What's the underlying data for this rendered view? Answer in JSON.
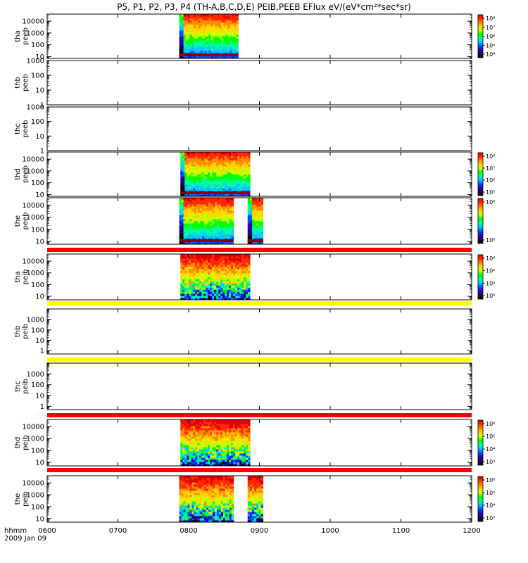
{
  "title": "P5, P1, P2, P3, P4 (TH-A,B,C,D,E) PEIB,PEEB EFlux eV/(eV*cm²*sec*sr)",
  "x_axis": {
    "label_line1": "hhmm",
    "label_line2": "2009 Jan 09",
    "ticks": [
      "0600",
      "0700",
      "0800",
      "0900",
      "1000",
      "1100",
      "1200"
    ]
  },
  "colors": {
    "flag_red": "#ff0000",
    "flag_yellow": "#ffff00",
    "colormap": [
      "#000000",
      "#2d0050",
      "#2a00c8",
      "#0050ff",
      "#00c8ff",
      "#00ff9a",
      "#00ff00",
      "#c8ff00",
      "#ffd400",
      "#ff8c00",
      "#ff2a00",
      "#e00000"
    ]
  },
  "chart_data": {
    "type": "heatmap",
    "x_range": [
      "06:00",
      "12:00"
    ],
    "y_scale": "log",
    "panels": [
      {
        "probe": "tha",
        "instrument": "peeb",
        "label": [
          "tha",
          "peeb"
        ],
        "ylim": [
          7,
          40000
        ],
        "yticks": [
          "10",
          "100",
          "1000",
          "10000"
        ],
        "data_intervals": [
          [
            "07:52",
            "08:42"
          ]
        ],
        "colorbar": {
          "ticks": [
            "10⁴",
            "10⁵",
            "10⁶",
            "10⁷",
            "10⁸"
          ]
        },
        "flag_bar_above": null
      },
      {
        "probe": "thb",
        "instrument": "peeb",
        "label": [
          "thb",
          "peeb"
        ],
        "ylim": [
          1,
          1000
        ],
        "yticks": [
          "1",
          "10",
          "100",
          "1000"
        ],
        "data_intervals": [],
        "colorbar": null,
        "flag_bar_above": null
      },
      {
        "probe": "thc",
        "instrument": "peeb",
        "label": [
          "thc",
          "peeb"
        ],
        "ylim": [
          1,
          1000
        ],
        "yticks": [
          "1",
          "10",
          "100",
          "1000"
        ],
        "data_intervals": [],
        "colorbar": null,
        "flag_bar_above": null
      },
      {
        "probe": "thd",
        "instrument": "peeb",
        "label": [
          "thd",
          "peeb"
        ],
        "ylim": [
          7,
          40000
        ],
        "yticks": [
          "10",
          "100",
          "1000",
          "10000"
        ],
        "data_intervals": [
          [
            "07:53",
            "08:52"
          ]
        ],
        "colorbar": {
          "ticks": [
            "10⁵",
            "10⁶",
            "10⁷",
            "10⁸"
          ]
        },
        "flag_bar_above": null
      },
      {
        "probe": "the",
        "instrument": "peeb",
        "label": [
          "the",
          "peeb"
        ],
        "ylim": [
          6,
          40000
        ],
        "yticks": [
          "10",
          "100",
          "1000",
          "10000"
        ],
        "data_intervals": [
          [
            "07:52",
            "08:38"
          ],
          [
            "08:50",
            "09:03"
          ]
        ],
        "colorbar": {
          "ticks": [
            "10⁶",
            "10⁸"
          ]
        },
        "flag_bar_above": null
      },
      {
        "probe": "tha",
        "instrument": "peib",
        "label": [
          "tha",
          "peib"
        ],
        "ylim": [
          5,
          40000
        ],
        "yticks": [
          "10",
          "100",
          "1000",
          "10000"
        ],
        "data_intervals": [
          [
            "07:53",
            "08:52"
          ]
        ],
        "colorbar": {
          "ticks": [
            "10³",
            "10⁴",
            "10⁵",
            "10⁶"
          ]
        },
        "flag_bar_above": "red"
      },
      {
        "probe": "thb",
        "instrument": "peib",
        "label": [
          "thb",
          "peib"
        ],
        "ylim": [
          0.5,
          10000
        ],
        "yticks": [
          "1",
          "10",
          "100",
          "1000"
        ],
        "data_intervals": [],
        "colorbar": null,
        "flag_bar_above": "yellow"
      },
      {
        "probe": "thc",
        "instrument": "peib",
        "label": [
          "thc",
          "peib"
        ],
        "ylim": [
          0.5,
          10000
        ],
        "yticks": [
          "1",
          "10",
          "100",
          "1000"
        ],
        "data_intervals": [],
        "colorbar": null,
        "flag_bar_above": "yellow"
      },
      {
        "probe": "thd",
        "instrument": "peib",
        "label": [
          "thd",
          "peib"
        ],
        "ylim": [
          5,
          40000
        ],
        "yticks": [
          "10",
          "100",
          "1000",
          "10000"
        ],
        "data_intervals": [
          [
            "07:53",
            "08:52"
          ]
        ],
        "colorbar": {
          "ticks": [
            "10³",
            "10⁴",
            "10⁵",
            "10⁶"
          ]
        },
        "flag_bar_above": "red"
      },
      {
        "probe": "the",
        "instrument": "peib",
        "label": [
          "the",
          "peib"
        ],
        "ylim": [
          5,
          40000
        ],
        "yticks": [
          "10",
          "100",
          "1000",
          "10000"
        ],
        "data_intervals": [
          [
            "07:52",
            "08:38"
          ],
          [
            "08:50",
            "09:03"
          ]
        ],
        "colorbar": {
          "ticks": [
            "10³",
            "10⁴",
            "10⁵",
            "10⁶"
          ]
        },
        "flag_bar_above": "red"
      }
    ]
  }
}
